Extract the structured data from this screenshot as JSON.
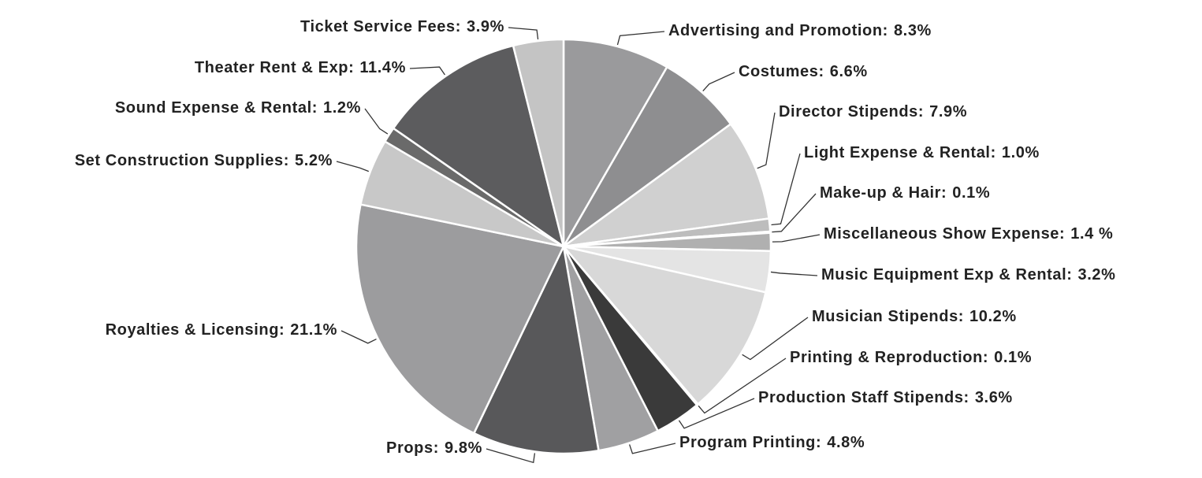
{
  "chart_data": {
    "type": "pie",
    "categories": [
      "Advertising and Promotion:",
      "Costumes:",
      "Director Stipends:",
      "Light Expense & Rental:",
      "Make-up & Hair:",
      "Miscellaneous Show Expense:",
      "Music Equipment Exp & Rental:",
      "Musician Stipends:",
      "Printing & Reproduction:",
      "Production Staff Stipends:",
      "Program Printing:",
      "Props:",
      "Royalties & Licensing:",
      "Set Construction Supplies:",
      "Sound Expense & Rental:",
      "Theater Rent & Exp:",
      "Ticket Service Fees:"
    ],
    "values": [
      8.3,
      6.6,
      7.9,
      1.0,
      0.1,
      1.4,
      3.2,
      10.2,
      0.1,
      3.6,
      4.8,
      9.8,
      21.1,
      5.2,
      1.2,
      11.4,
      3.9
    ],
    "value_labels": [
      "8.3%",
      "6.6%",
      "7.9%",
      "1.0%",
      "0.1%",
      "1.4 %",
      "3.2%",
      "10.2%",
      "0.1%",
      "3.6%",
      "4.8%",
      "9.8%",
      "21.1%",
      "5.2%",
      "1.2%",
      "11.4%",
      "3.9%"
    ],
    "colors": [
      "#9a9a9c",
      "#8e8e90",
      "#d0d0d0",
      "#bdbdbd",
      "#999999",
      "#b0b0b0",
      "#e4e4e4",
      "#d8d8d8",
      "#888888",
      "#3a3a3a",
      "#a0a0a2",
      "#58585a",
      "#9c9c9e",
      "#c8c8c8",
      "#6a6a6a",
      "#5c5c5e",
      "#c4c4c4"
    ]
  }
}
